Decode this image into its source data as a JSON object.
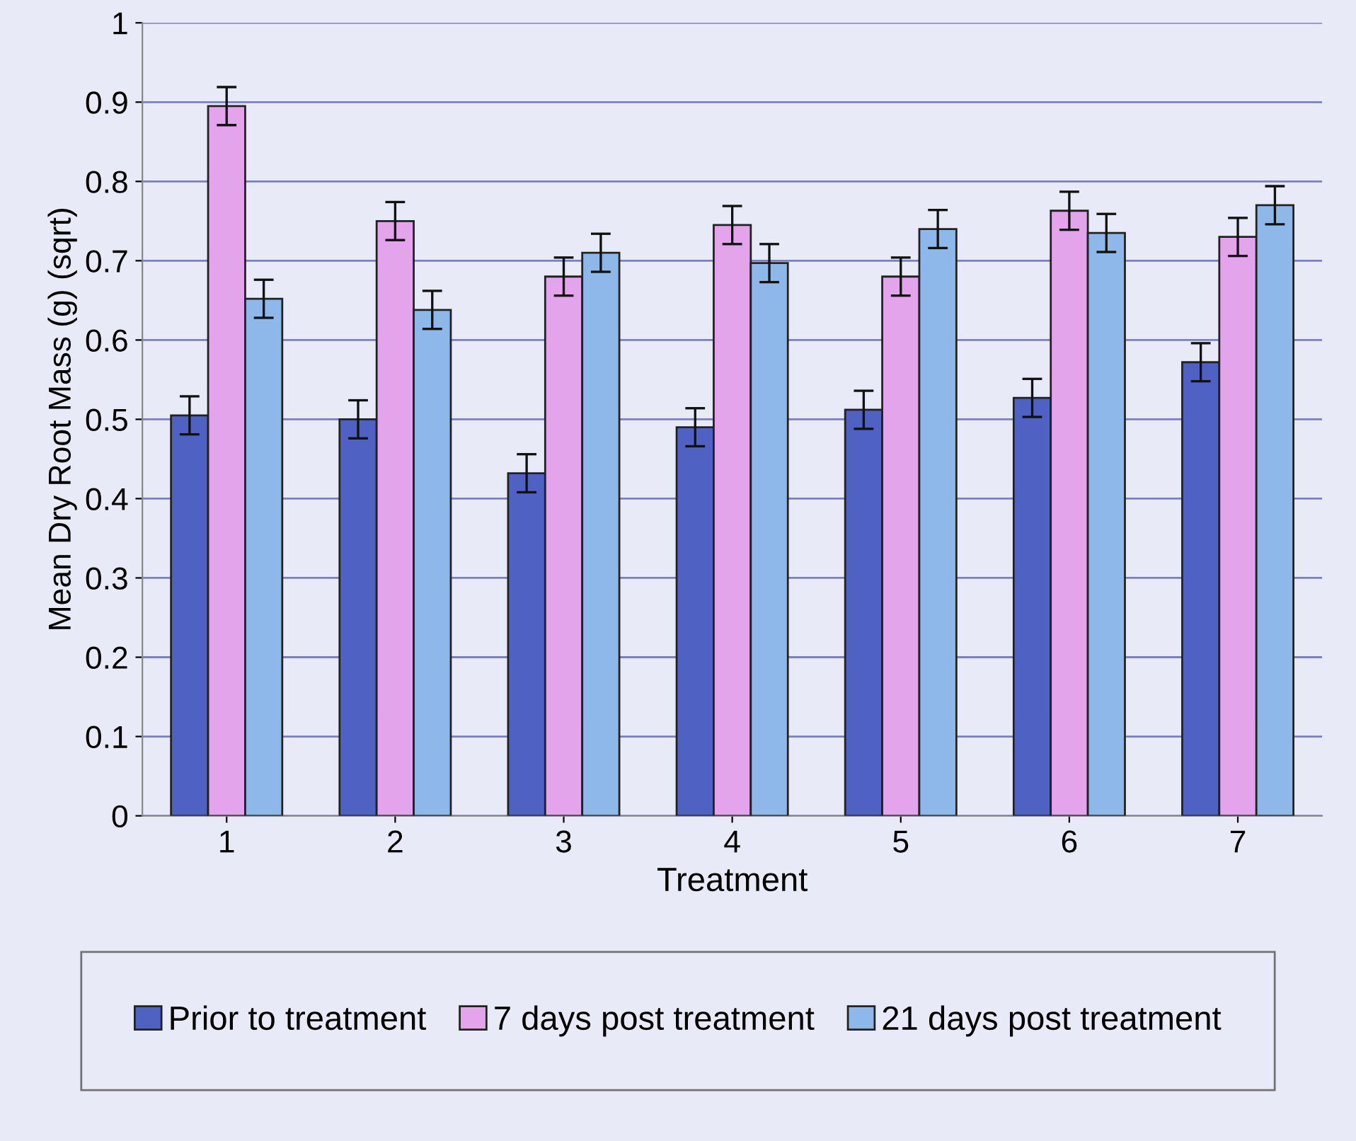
{
  "chart_data": {
    "type": "bar",
    "xlabel": "Treatment",
    "ylabel": "Mean Dry Root Mass (g) (sqrt)",
    "categories": [
      "1",
      "2",
      "3",
      "4",
      "5",
      "6",
      "7"
    ],
    "series": [
      {
        "name": "Prior to treatment",
        "color": "#4f62c4",
        "values": [
          0.505,
          0.5,
          0.432,
          0.49,
          0.512,
          0.527,
          0.572
        ],
        "errors": [
          0.024,
          0.024,
          0.024,
          0.024,
          0.024,
          0.024,
          0.024
        ]
      },
      {
        "name": "7 days post treatment",
        "color": "#e4a4ec",
        "values": [
          0.895,
          0.75,
          0.68,
          0.745,
          0.68,
          0.763,
          0.73
        ],
        "errors": [
          0.024,
          0.024,
          0.024,
          0.024,
          0.024,
          0.024,
          0.024
        ]
      },
      {
        "name": "21 days post treatment",
        "color": "#8fb8ea",
        "values": [
          0.652,
          0.638,
          0.71,
          0.697,
          0.74,
          0.735,
          0.77
        ],
        "errors": [
          0.024,
          0.024,
          0.024,
          0.024,
          0.024,
          0.024,
          0.024
        ]
      }
    ],
    "ylim": [
      0,
      1
    ],
    "yticks": [
      0,
      0.1,
      0.2,
      0.3,
      0.4,
      0.5,
      0.6,
      0.7,
      0.8,
      0.9,
      1
    ],
    "grid": "y",
    "legend": "bottom"
  }
}
